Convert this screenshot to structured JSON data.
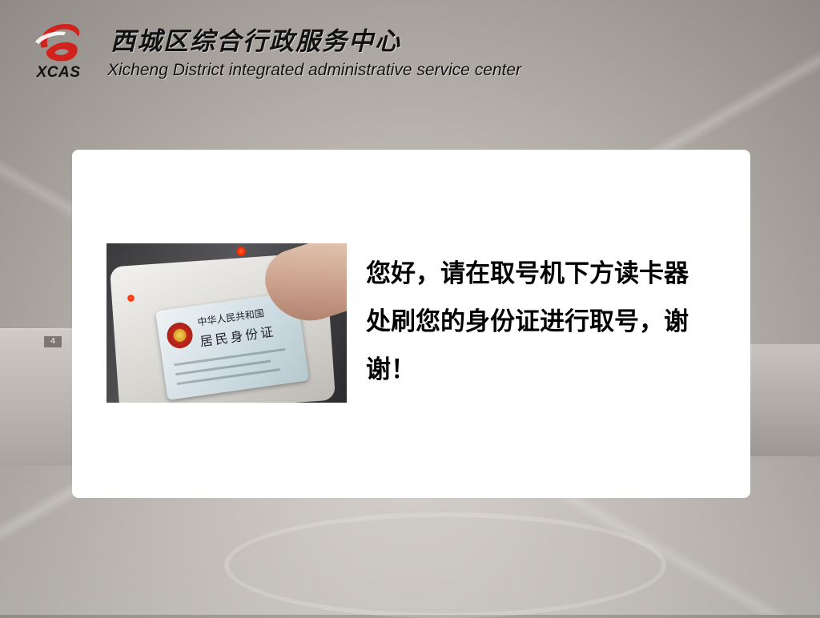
{
  "header": {
    "logo_text": "XCAS",
    "title_cn": "西城区综合行政服务中心",
    "title_en": "Xicheng District integrated administrative service center"
  },
  "background": {
    "sign_number": "4"
  },
  "card": {
    "message": "您好，请在取号机下方读卡器处刷您的身份证进行取号，谢谢！",
    "photo": {
      "id_card_line1": "中华人民共和国",
      "id_card_line2": "居民身份证"
    }
  },
  "colors": {
    "logo_red": "#d1231c",
    "card_background": "#ffffff",
    "text": "#000000"
  }
}
